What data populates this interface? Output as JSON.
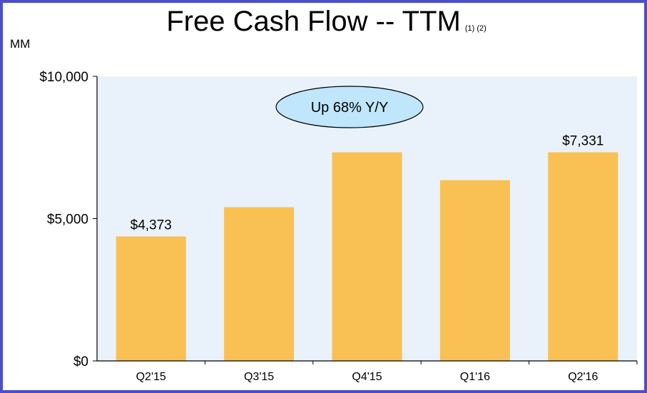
{
  "title": "Free Cash Flow -- TTM",
  "title_footnotes": "(1) (2)",
  "unit_label": "MM",
  "annotation": "Up 68%  Y/Y",
  "colors": {
    "border": "#4a4fc9",
    "plot_bg": "#e9f1fb",
    "bar": "#f9c153",
    "callout_fill": "#bfe6fb",
    "callout_stroke": "#000000"
  },
  "chart_data": {
    "type": "bar",
    "title": "Free Cash Flow -- TTM",
    "xlabel": "",
    "ylabel": "MM",
    "categories": [
      "Q2'15",
      "Q3'15",
      "Q4'15",
      "Q1'16",
      "Q2'16"
    ],
    "values": [
      4373,
      5400,
      7331,
      6350,
      7331
    ],
    "data_labels": [
      "$4,373",
      "",
      "",
      "",
      "$7,331"
    ],
    "ylim": [
      0,
      10000
    ],
    "yticks": [
      0,
      5000,
      10000
    ],
    "ytick_labels": [
      "$0",
      "$5,000",
      "$10,000"
    ],
    "grid": false,
    "legend": "none"
  }
}
